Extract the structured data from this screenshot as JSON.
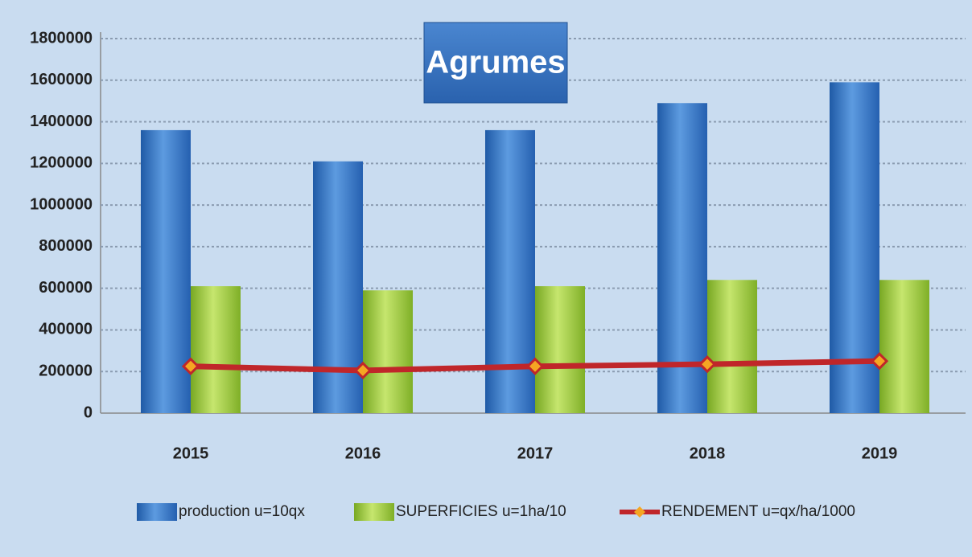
{
  "chart_data": {
    "type": "bar",
    "title": "Agrumes",
    "categories": [
      "2015",
      "2016",
      "2017",
      "2018",
      "2019"
    ],
    "series": [
      {
        "name": "production u=10qx",
        "color": "#3a78c9",
        "values": [
          1360000,
          1210000,
          1360000,
          1490000,
          1590000
        ]
      },
      {
        "name": "SUPERFICIES u=1ha/10",
        "color": "#9acb3c",
        "values": [
          610000,
          590000,
          610000,
          640000,
          640000
        ]
      },
      {
        "name": "RENDEMENT u=qx/ha/1000",
        "type": "line",
        "color": "#c0262a",
        "marker_color": "#f5a623",
        "values": [
          225000,
          205000,
          225000,
          235000,
          250000
        ]
      }
    ],
    "ylim": [
      0,
      1800000
    ],
    "yticks": [
      0,
      200000,
      400000,
      600000,
      800000,
      1000000,
      1200000,
      1400000,
      1600000,
      1800000
    ],
    "grid": true,
    "legend": "bottom"
  }
}
